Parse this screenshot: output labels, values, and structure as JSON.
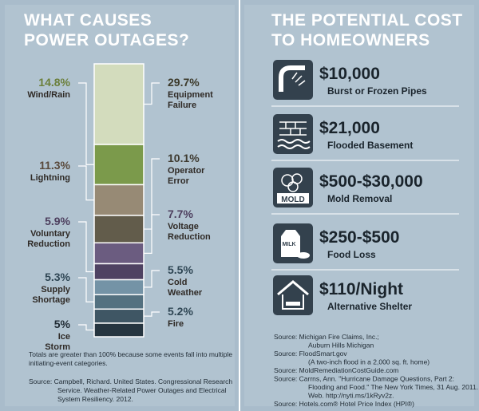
{
  "chart_data": {
    "type": "stacked-column",
    "title": [
      "WHAT CAUSES",
      "POWER OUTAGES?"
    ],
    "categories": [
      "Equipment Failure",
      "Wind/Rain",
      "Lightning",
      "Operator Error",
      "Voltage Reduction",
      "Voluntary Reduction",
      "Cold Weather",
      "Supply Shortage",
      "Fire",
      "Ice Storm"
    ],
    "values": [
      29.7,
      14.8,
      11.3,
      10.1,
      7.7,
      5.9,
      5.5,
      5.3,
      5.2,
      5
    ],
    "value_labels": [
      "29.7%",
      "14.8%",
      "11.3%",
      "10.1%",
      "7.7%",
      "5.9%",
      "5.5%",
      "5.3%",
      "5.2%",
      "5%"
    ],
    "colors": [
      "#d3dcbd",
      "#7b9a4b",
      "#978a75",
      "#625c4b",
      "#6b5c80",
      "#4f4262",
      "#7493a6",
      "#547180",
      "#3f5664",
      "#263540"
    ]
  },
  "note": [
    "Totals are greater than 100% because some events fall into multiple",
    "initiating-event categories."
  ],
  "source_left": [
    "Source: Campbell, Richard. United States. Congressional Research",
    "Service. Weather-Related Power Outages and Electrical",
    "System Resiliency. 2012."
  ],
  "right_title": [
    "THE POTENTIAL COST",
    "TO HOMEOWNERS"
  ],
  "costs": [
    {
      "amount": "$10,000",
      "label": "Burst or Frozen Pipes"
    },
    {
      "amount": "$21,000",
      "label": "Flooded Basement"
    },
    {
      "amount": "$500-$30,000",
      "label": "Mold Removal"
    },
    {
      "amount": "$250-$500",
      "label": "Food Loss"
    },
    {
      "amount": "$110/Night",
      "label": "Alternative Shelter"
    }
  ],
  "icon_text": [
    "MOLD",
    "MILK"
  ],
  "sources": [
    "Source: Michigan Fire Claims, Inc.;",
    "Auburn Hills Michigan",
    "Source: FloodSmart.gov",
    "(A two-inch flood in a 2,000 sq. ft. home)",
    "Source: MoldRemediationCostGuide.com",
    "Source: Carrns, Ann. \"Hurricane Damage Questions, Part 2:",
    "Flooding and Food.\" The New York Times, 31 Aug. 2011.",
    "Web. http://nyti.ms/1kRyv2z.",
    "Source: Hotels.com® Hotel Price Index (HPI®)"
  ]
}
